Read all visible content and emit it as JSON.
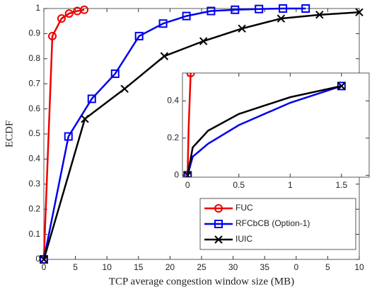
{
  "chart_data": [
    {
      "type": "line",
      "xlabel": "TCP average congestion window size (MB)",
      "ylabel": "ECDF",
      "xlim": [
        0,
        50
      ],
      "ylim": [
        0,
        1
      ],
      "xticks": [
        0,
        5,
        10,
        15,
        20,
        25,
        30,
        35,
        {
          "value": 40,
          "label": "0"
        },
        {
          "value": 45,
          "label": "5"
        },
        {
          "value": 50,
          "label": "10"
        }
      ],
      "yticks": [
        0,
        0.1,
        0.2,
        0.3,
        0.4,
        0.5,
        0.6,
        0.7,
        0.8,
        0.9,
        1
      ],
      "legend": "lower right",
      "series": [
        {
          "name": "FUC",
          "color": "#ee0000",
          "marker": "o",
          "x": [
            0,
            1.35,
            2.8,
            4.0,
            5.3,
            6.4
          ],
          "values": [
            0,
            0.89,
            0.96,
            0.98,
            0.99,
            0.995
          ]
        },
        {
          "name": "RFCbCB (Option-1)",
          "color": "#0000ee",
          "marker": "s",
          "x": [
            0,
            3.9,
            7.6,
            11.3,
            15.1,
            18.9,
            22.6,
            26.5,
            30.3,
            34.1,
            37.9,
            41.5
          ],
          "values": [
            0,
            0.49,
            0.64,
            0.74,
            0.89,
            0.94,
            0.97,
            0.99,
            0.995,
            0.998,
            1,
            1
          ]
        },
        {
          "name": "IUIC",
          "color": "#000000",
          "marker": "x",
          "x": [
            0,
            6.5,
            12.8,
            19.1,
            25.3,
            31.4,
            37.6,
            43.7,
            50
          ],
          "values": [
            0,
            0.56,
            0.68,
            0.81,
            0.87,
            0.92,
            0.96,
            0.975,
            0.985
          ]
        }
      ]
    },
    {
      "type": "line",
      "xlim": [
        -0.05,
        1.77
      ],
      "ylim": [
        -0.01,
        0.55
      ],
      "xticks": [
        0,
        0.5,
        1,
        1.5
      ],
      "yticks": [
        0,
        0.2,
        0.4
      ],
      "series": [
        {
          "color": "#ee0000",
          "marker": "o",
          "x": [
            0,
            0.01,
            0.03
          ],
          "values": [
            0,
            0.25,
            0.55
          ]
        },
        {
          "color": "#0000ee",
          "marker": "s",
          "x": [
            0,
            0.05,
            0.2,
            0.5,
            1,
            1.5
          ],
          "values": [
            0,
            0.1,
            0.17,
            0.27,
            0.39,
            0.48
          ]
        },
        {
          "color": "#000000",
          "marker": "x",
          "x": [
            0,
            0.05,
            0.2,
            0.5,
            1,
            1.5
          ],
          "values": [
            0,
            0.15,
            0.24,
            0.33,
            0.42,
            0.48
          ]
        }
      ]
    }
  ]
}
